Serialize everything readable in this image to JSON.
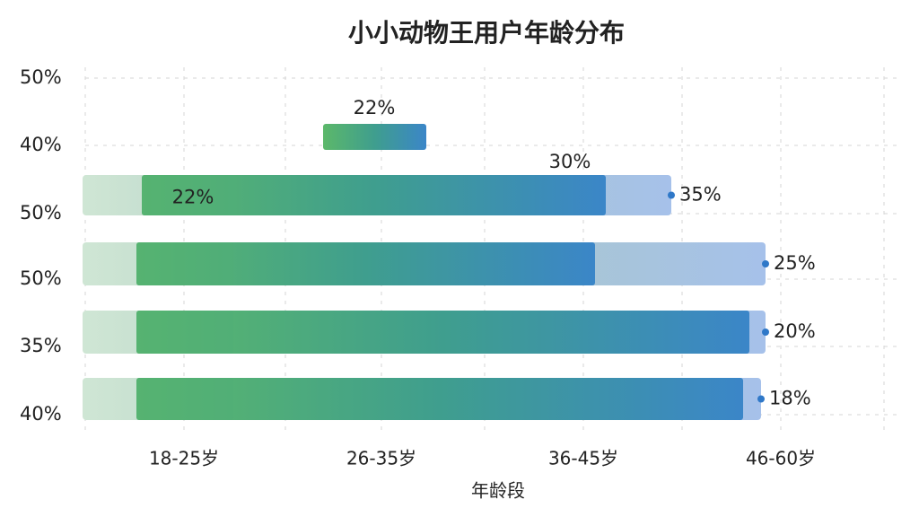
{
  "header": {
    "title": "小小动物王用户年龄分布"
  },
  "y_labels": [
    "50%",
    "40%",
    "50%",
    "50%",
    "35%",
    "40%"
  ],
  "x_labels": [
    "18-25岁",
    "26-35岁",
    "36-45岁",
    "46-60岁"
  ],
  "x_axis_title": "年龄段",
  "floating_bar_label": "22%",
  "rows": [
    {
      "inner_label": "22%",
      "top_label": "30%",
      "end_label": "35%"
    },
    {
      "end_label": "25%"
    },
    {
      "end_label": "20%"
    },
    {
      "end_label": "18%"
    }
  ]
}
